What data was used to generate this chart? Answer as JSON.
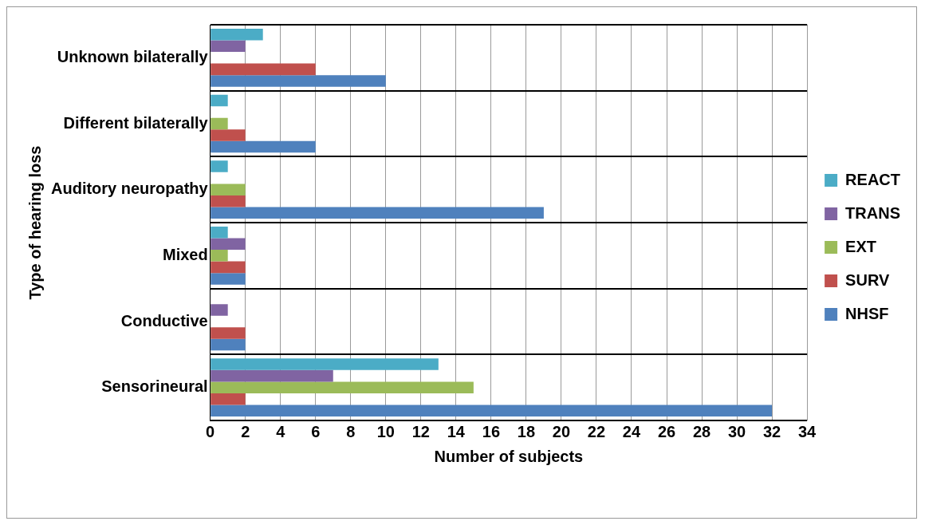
{
  "chart_data": {
    "type": "bar",
    "orientation": "horizontal",
    "xlabel": "Number of subjects",
    "ylabel": "Type of hearing loss",
    "categories": [
      "Unknown bilaterally",
      "Different bilaterally",
      "Auditory neuropathy",
      "Mixed",
      "Conductive",
      "Sensorineural"
    ],
    "series": [
      {
        "name": "REACT",
        "color": "#4bacc6",
        "values": [
          3,
          1,
          1,
          1,
          0,
          13
        ]
      },
      {
        "name": "TRANS",
        "color": "#8064a2",
        "values": [
          2,
          0,
          0,
          2,
          1,
          7
        ]
      },
      {
        "name": "EXT",
        "color": "#9bbb59",
        "values": [
          0,
          1,
          2,
          1,
          0,
          15
        ]
      },
      {
        "name": "SURV",
        "color": "#c0504d",
        "values": [
          6,
          2,
          2,
          2,
          2,
          2
        ]
      },
      {
        "name": "NHSF",
        "color": "#4f81bd",
        "values": [
          10,
          6,
          19,
          2,
          2,
          32
        ]
      }
    ],
    "xlim": [
      0,
      34
    ],
    "xticks": [
      0,
      2,
      4,
      6,
      8,
      10,
      12,
      14,
      16,
      18,
      20,
      22,
      24,
      26,
      28,
      30,
      32,
      34
    ],
    "grid": true,
    "legend": "right"
  }
}
